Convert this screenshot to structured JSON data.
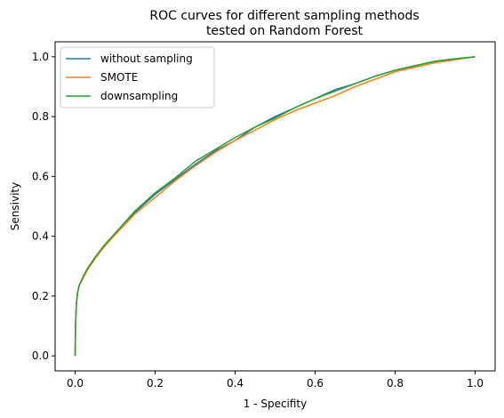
{
  "chart_data": {
    "type": "line",
    "title_line1": "ROC curves for different sampling methods",
    "title_line2": "tested on Random Forest",
    "xlabel": "1 - Specifity",
    "ylabel": "Sensivity",
    "xlim": [
      -0.05,
      1.05
    ],
    "ylim": [
      -0.05,
      1.05
    ],
    "x_ticks": [
      "0.0",
      "0.2",
      "0.4",
      "0.6",
      "0.8",
      "1.0"
    ],
    "y_ticks": [
      "0.0",
      "0.2",
      "0.4",
      "0.6",
      "0.8",
      "1.0"
    ],
    "grid": false,
    "legend_position": "upper-left",
    "series": [
      {
        "name": "without sampling",
        "color": "#1f77b4",
        "points": [
          [
            0,
            0
          ],
          [
            0.001,
            0.1
          ],
          [
            0.003,
            0.17
          ],
          [
            0.006,
            0.21
          ],
          [
            0.01,
            0.235
          ],
          [
            0.02,
            0.26
          ],
          [
            0.03,
            0.29
          ],
          [
            0.05,
            0.33
          ],
          [
            0.07,
            0.365
          ],
          [
            0.1,
            0.41
          ],
          [
            0.15,
            0.48
          ],
          [
            0.2,
            0.54
          ],
          [
            0.25,
            0.59
          ],
          [
            0.3,
            0.64
          ],
          [
            0.35,
            0.685
          ],
          [
            0.4,
            0.72
          ],
          [
            0.45,
            0.765
          ],
          [
            0.5,
            0.8
          ],
          [
            0.55,
            0.83
          ],
          [
            0.6,
            0.86
          ],
          [
            0.65,
            0.89
          ],
          [
            0.7,
            0.91
          ],
          [
            0.75,
            0.935
          ],
          [
            0.8,
            0.955
          ],
          [
            0.85,
            0.97
          ],
          [
            0.9,
            0.985
          ],
          [
            0.95,
            0.993
          ],
          [
            1,
            1
          ]
        ]
      },
      {
        "name": "SMOTE",
        "color": "#ff7f0e",
        "points": [
          [
            0,
            0
          ],
          [
            0.001,
            0.1
          ],
          [
            0.003,
            0.17
          ],
          [
            0.006,
            0.21
          ],
          [
            0.01,
            0.235
          ],
          [
            0.02,
            0.26
          ],
          [
            0.03,
            0.285
          ],
          [
            0.05,
            0.325
          ],
          [
            0.07,
            0.36
          ],
          [
            0.1,
            0.405
          ],
          [
            0.15,
            0.475
          ],
          [
            0.2,
            0.53
          ],
          [
            0.25,
            0.585
          ],
          [
            0.3,
            0.635
          ],
          [
            0.35,
            0.68
          ],
          [
            0.4,
            0.72
          ],
          [
            0.45,
            0.755
          ],
          [
            0.5,
            0.79
          ],
          [
            0.55,
            0.82
          ],
          [
            0.6,
            0.845
          ],
          [
            0.65,
            0.87
          ],
          [
            0.7,
            0.9
          ],
          [
            0.75,
            0.925
          ],
          [
            0.8,
            0.95
          ],
          [
            0.85,
            0.965
          ],
          [
            0.9,
            0.98
          ],
          [
            0.95,
            0.99
          ],
          [
            1,
            1
          ]
        ]
      },
      {
        "name": "downsampling",
        "color": "#2ca02c",
        "points": [
          [
            0,
            0
          ],
          [
            0.001,
            0.1
          ],
          [
            0.003,
            0.17
          ],
          [
            0.006,
            0.21
          ],
          [
            0.01,
            0.235
          ],
          [
            0.02,
            0.265
          ],
          [
            0.03,
            0.29
          ],
          [
            0.05,
            0.33
          ],
          [
            0.07,
            0.365
          ],
          [
            0.1,
            0.41
          ],
          [
            0.15,
            0.485
          ],
          [
            0.2,
            0.545
          ],
          [
            0.25,
            0.595
          ],
          [
            0.3,
            0.65
          ],
          [
            0.35,
            0.69
          ],
          [
            0.4,
            0.73
          ],
          [
            0.45,
            0.765
          ],
          [
            0.5,
            0.795
          ],
          [
            0.55,
            0.83
          ],
          [
            0.6,
            0.86
          ],
          [
            0.65,
            0.885
          ],
          [
            0.7,
            0.91
          ],
          [
            0.75,
            0.935
          ],
          [
            0.8,
            0.955
          ],
          [
            0.85,
            0.97
          ],
          [
            0.9,
            0.985
          ],
          [
            0.95,
            0.993
          ],
          [
            1,
            1
          ]
        ]
      }
    ]
  }
}
